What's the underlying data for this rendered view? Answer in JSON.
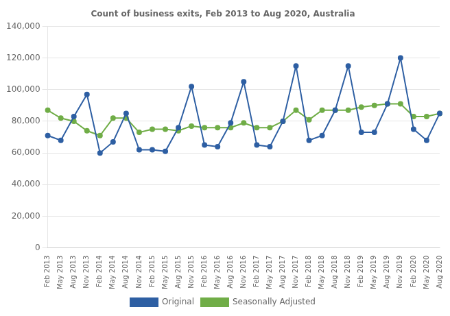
{
  "chart_data": {
    "type": "line",
    "title": "Count of business exits, Feb 2013 to Aug 2020, Australia",
    "categories": [
      "Feb 2013",
      "May 2013",
      "Aug 2013",
      "Nov 2013",
      "Feb 2014",
      "May 2014",
      "Aug 2014",
      "Nov 2014",
      "Feb 2015",
      "May 2015",
      "Aug 2015",
      "Nov 2015",
      "Feb 2016",
      "May 2016",
      "Aug 2016",
      "Nov 2016",
      "Feb 2017",
      "May 2017",
      "Aug 2017",
      "Nov 2017",
      "Feb 2018",
      "May 2018",
      "Aug 2018",
      "Nov 2018",
      "Feb 2019",
      "May 2019",
      "Aug 2019",
      "Nov 2019",
      "Feb 2020",
      "May 2020",
      "Aug 2020"
    ],
    "series": [
      {
        "name": "Original",
        "color": "#2E5FA3",
        "marker": "circle",
        "values": [
          71000,
          68000,
          83000,
          97000,
          60000,
          67000,
          85000,
          62000,
          62000,
          61000,
          76000,
          102000,
          65000,
          64000,
          79000,
          105000,
          65000,
          64000,
          80000,
          115000,
          68000,
          71000,
          87000,
          115000,
          73000,
          73000,
          91000,
          120000,
          75000,
          68000,
          85000
        ]
      },
      {
        "name": "Seasonally Adjusted",
        "color": "#70AD47",
        "marker": "circle",
        "values": [
          87000,
          82000,
          80000,
          74000,
          71000,
          82000,
          82000,
          73000,
          75000,
          75000,
          74000,
          77000,
          76000,
          76000,
          76000,
          79000,
          76000,
          76000,
          80000,
          87000,
          81000,
          87000,
          87000,
          87000,
          89000,
          90000,
          91000,
          91000,
          83000,
          83000,
          85000
        ]
      }
    ],
    "ylim": [
      0,
      140000
    ],
    "yticks": [
      0,
      {
        "value": 20000,
        "label": "20,000"
      },
      {
        "value": 40000,
        "label": "40,000"
      },
      {
        "value": 60000,
        "label": "60,000"
      },
      {
        "value": 80000,
        "label": "80,000"
      },
      {
        "value": 100000,
        "label": "100,000"
      },
      {
        "value": 120000,
        "label": "120,000"
      },
      {
        "value": 140000,
        "label": "140,000"
      }
    ],
    "grid": true,
    "legend": "bottom"
  }
}
